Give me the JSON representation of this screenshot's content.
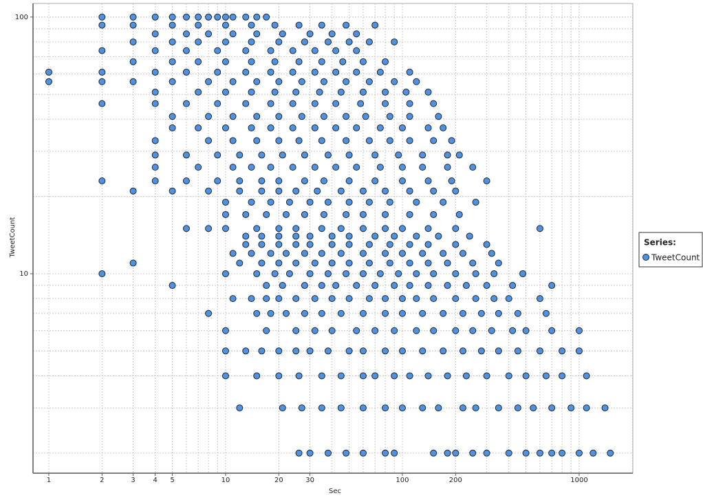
{
  "chart_data": {
    "type": "scatter",
    "x_label": "Sec",
    "y_label": "TweetCount",
    "x_log": true,
    "y_log": true,
    "grid": true,
    "legend_title": "Series:",
    "legend_position": "right",
    "xlim": [
      0.814,
      2012
    ],
    "ylim": [
      1.67,
      113
    ],
    "xticks": [
      1,
      2,
      3,
      4,
      5,
      10,
      20,
      30,
      100,
      200,
      1000
    ],
    "yticks": [
      10,
      100
    ],
    "x_minor_grid": [
      6,
      7,
      8,
      9,
      40,
      50,
      60,
      70,
      80,
      90,
      300,
      400,
      500,
      600,
      700,
      800,
      900,
      2000
    ],
    "y_minor_grid": [
      2,
      3,
      4,
      5,
      6,
      7,
      8,
      9,
      20,
      30,
      40,
      50,
      60,
      70,
      80,
      90
    ],
    "series": [
      {
        "name": "TweetCount",
        "color": "#5092e0",
        "x": [
          26,
          30,
          38,
          48,
          60,
          80,
          90,
          150,
          180,
          200,
          250,
          300,
          400,
          500,
          600,
          700,
          800,
          1000,
          1200,
          1500,
          12,
          21,
          27,
          35,
          45,
          60,
          80,
          100,
          130,
          160,
          220,
          260,
          350,
          450,
          550,
          700,
          900,
          1100,
          1400,
          10,
          15,
          20,
          26,
          35,
          45,
          60,
          70,
          90,
          110,
          140,
          180,
          230,
          300,
          400,
          500,
          650,
          800,
          1100,
          10,
          13,
          16,
          20,
          25,
          30,
          38,
          50,
          60,
          80,
          100,
          130,
          170,
          220,
          280,
          350,
          450,
          600,
          800,
          1000,
          10,
          17,
          25,
          32,
          40,
          55,
          70,
          90,
          120,
          150,
          200,
          250,
          320,
          420,
          500,
          700,
          1000,
          8,
          15,
          18,
          22,
          28,
          35,
          45,
          60,
          80,
          100,
          130,
          170,
          220,
          280,
          350,
          450,
          650,
          11,
          14,
          17,
          20,
          25,
          32,
          40,
          50,
          65,
          80,
          100,
          120,
          150,
          200,
          260,
          330,
          400,
          600,
          5,
          17,
          21,
          28,
          35,
          42,
          55,
          70,
          90,
          110,
          140,
          180,
          230,
          300,
          420,
          700,
          2,
          10,
          15,
          19,
          23,
          30,
          38,
          48,
          60,
          75,
          95,
          120,
          150,
          200,
          260,
          330,
          480,
          3,
          12,
          16,
          20,
          25,
          32,
          40,
          50,
          65,
          85,
          110,
          140,
          180,
          250,
          350,
          11,
          14,
          18,
          22,
          28,
          35,
          45,
          60,
          80,
          100,
          130,
          170,
          220,
          320,
          13,
          16,
          20,
          25,
          30,
          40,
          50,
          65,
          85,
          110,
          140,
          200,
          300,
          13,
          16,
          20,
          25,
          30,
          40,
          50,
          70,
          90,
          120,
          160,
          240,
          6,
          8,
          10,
          15,
          20,
          25,
          35,
          45,
          60,
          80,
          100,
          140,
          200,
          600,
          10,
          13,
          17,
          22,
          28,
          36,
          48,
          60,
          80,
          110,
          150,
          210,
          10,
          14,
          18,
          23,
          30,
          38,
          50,
          65,
          85,
          120,
          170,
          260,
          3,
          5,
          8,
          12,
          16,
          20,
          25,
          33,
          45,
          60,
          80,
          110,
          150,
          200,
          2,
          4,
          6,
          9,
          12,
          16,
          20,
          28,
          36,
          50,
          70,
          100,
          140,
          190,
          300,
          4,
          7,
          11,
          14,
          18,
          24,
          32,
          42,
          55,
          75,
          100,
          130,
          180,
          250,
          4,
          6,
          9,
          12,
          16,
          21,
          28,
          38,
          50,
          70,
          95,
          130,
          180,
          210,
          4,
          8,
          11,
          15,
          20,
          26,
          35,
          48,
          65,
          85,
          110,
          150,
          190,
          5,
          7,
          10,
          14,
          18,
          24,
          32,
          42,
          55,
          75,
          100,
          140,
          170,
          5,
          8,
          11,
          15,
          20,
          27,
          36,
          48,
          62,
          85,
          110,
          160,
          2,
          4,
          6,
          9,
          13,
          18,
          24,
          32,
          42,
          58,
          80,
          110,
          150,
          4,
          7,
          10,
          14,
          19,
          25,
          34,
          45,
          60,
          80,
          105,
          140,
          1,
          2,
          3,
          5,
          8,
          11,
          15,
          20,
          27,
          36,
          48,
          65,
          90,
          120,
          1,
          2,
          4,
          6,
          9,
          13,
          18,
          24,
          32,
          42,
          55,
          75,
          110,
          3,
          5,
          7,
          10,
          14,
          19,
          26,
          35,
          46,
          60,
          80,
          2,
          4,
          6,
          9,
          13,
          18,
          24,
          32,
          42,
          55,
          3,
          5,
          7,
          10,
          14,
          20,
          28,
          38,
          50,
          65,
          90,
          4,
          6,
          8,
          11,
          15,
          21,
          30,
          40,
          55,
          2,
          3,
          5,
          7,
          10,
          14,
          19,
          26,
          35,
          48,
          70,
          2,
          3,
          4,
          5,
          6,
          7,
          8,
          9,
          10,
          11,
          13,
          15,
          17
        ],
        "values": [
          2,
          2,
          2,
          2,
          2,
          2,
          2,
          2,
          2,
          2,
          2,
          2,
          2,
          2,
          2,
          2,
          2,
          2,
          2,
          2,
          3,
          3,
          3,
          3,
          3,
          3,
          3,
          3,
          3,
          3,
          3,
          3,
          3,
          3,
          3,
          3,
          3,
          3,
          3,
          4,
          4,
          4,
          4,
          4,
          4,
          4,
          4,
          4,
          4,
          4,
          4,
          4,
          4,
          4,
          4,
          4,
          4,
          4,
          5,
          5,
          5,
          5,
          5,
          5,
          5,
          5,
          5,
          5,
          5,
          5,
          5,
          5,
          5,
          5,
          5,
          5,
          5,
          5,
          6,
          6,
          6,
          6,
          6,
          6,
          6,
          6,
          6,
          6,
          6,
          6,
          6,
          6,
          6,
          6,
          6,
          7,
          7,
          7,
          7,
          7,
          7,
          7,
          7,
          7,
          7,
          7,
          7,
          7,
          7,
          7,
          7,
          7,
          8,
          8,
          8,
          8,
          8,
          8,
          8,
          8,
          8,
          8,
          8,
          8,
          8,
          8,
          8,
          8,
          8,
          8,
          9,
          9,
          9,
          9,
          9,
          9,
          9,
          9,
          9,
          9,
          9,
          9,
          9,
          9,
          9,
          9,
          10,
          10,
          10,
          10,
          10,
          10,
          10,
          10,
          10,
          10,
          10,
          10,
          10,
          10,
          10,
          10,
          10,
          11,
          11,
          11,
          11,
          11,
          11,
          11,
          11,
          11,
          11,
          11,
          11,
          11,
          11,
          11,
          12,
          12,
          12,
          12,
          12,
          12,
          12,
          12,
          12,
          12,
          12,
          12,
          12,
          12,
          13,
          13,
          13,
          13,
          13,
          13,
          13,
          13,
          13,
          13,
          13,
          13,
          13,
          14,
          14,
          14,
          14,
          14,
          14,
          14,
          14,
          14,
          14,
          14,
          14,
          15,
          15,
          15,
          15,
          15,
          15,
          15,
          15,
          15,
          15,
          15,
          15,
          15,
          15,
          17,
          17,
          17,
          17,
          17,
          17,
          17,
          17,
          17,
          17,
          17,
          17,
          19,
          19,
          19,
          19,
          19,
          19,
          19,
          19,
          19,
          19,
          19,
          19,
          21,
          21,
          21,
          21,
          21,
          21,
          21,
          21,
          21,
          21,
          21,
          21,
          21,
          21,
          23,
          23,
          23,
          23,
          23,
          23,
          23,
          23,
          23,
          23,
          23,
          23,
          23,
          23,
          23,
          26,
          26,
          26,
          26,
          26,
          26,
          26,
          26,
          26,
          26,
          26,
          26,
          26,
          26,
          29,
          29,
          29,
          29,
          29,
          29,
          29,
          29,
          29,
          29,
          29,
          29,
          29,
          29,
          33,
          33,
          33,
          33,
          33,
          33,
          33,
          33,
          33,
          33,
          33,
          33,
          33,
          37,
          37,
          37,
          37,
          37,
          37,
          37,
          37,
          37,
          37,
          37,
          37,
          37,
          41,
          41,
          41,
          41,
          41,
          41,
          41,
          41,
          41,
          41,
          41,
          41,
          46,
          46,
          46,
          46,
          46,
          46,
          46,
          46,
          46,
          46,
          46,
          46,
          46,
          51,
          51,
          51,
          51,
          51,
          51,
          51,
          51,
          51,
          51,
          51,
          51,
          56,
          56,
          56,
          56,
          56,
          56,
          56,
          56,
          56,
          56,
          56,
          56,
          56,
          56,
          61,
          61,
          61,
          61,
          61,
          61,
          61,
          61,
          61,
          61,
          61,
          61,
          61,
          67,
          67,
          67,
          67,
          67,
          67,
          67,
          67,
          67,
          67,
          67,
          74,
          74,
          74,
          74,
          74,
          74,
          74,
          74,
          74,
          74,
          80,
          80,
          80,
          80,
          80,
          80,
          80,
          80,
          80,
          80,
          80,
          86,
          86,
          86,
          86,
          86,
          86,
          86,
          86,
          86,
          93,
          93,
          93,
          93,
          93,
          93,
          93,
          93,
          93,
          93,
          93,
          100,
          100,
          100,
          100,
          100,
          100,
          100,
          100,
          100,
          100,
          100,
          100,
          100
        ]
      }
    ]
  }
}
